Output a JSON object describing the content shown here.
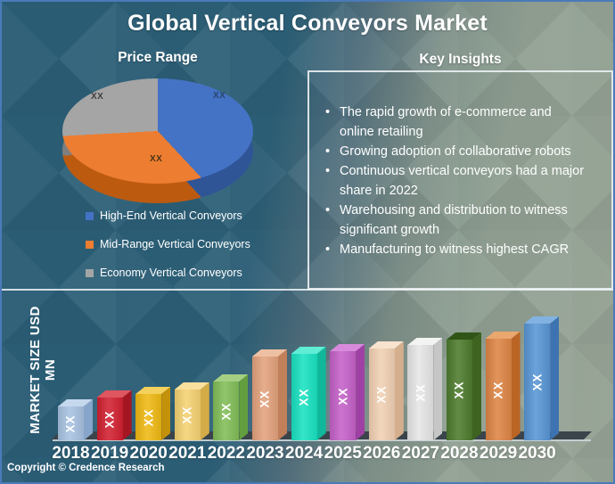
{
  "header": {
    "title": "Global Vertical Conveyors Market"
  },
  "sections": {
    "pie_title": "Price Range",
    "insights_title": "Key Insights"
  },
  "insights_bullets": [
    "The rapid growth of e-commerce and online retailing",
    "Growing adoption of collaborative robots",
    "Continuous vertical conveyors had a major share in 2022",
    "Warehousing and distribution to witness significant growth",
    "Manufacturing to witness highest CAGR"
  ],
  "chart_data": [
    {
      "type": "pie",
      "title": "Price Range",
      "slices": [
        {
          "label": "High-End Vertical Conveyors",
          "value": "XX",
          "color": "#4472C4",
          "side_color": "#2F5597",
          "sweep_deg": 137
        },
        {
          "label": "Mid-Range Vertical Conveyors",
          "value": "XX",
          "color": "#ED7D31",
          "side_color": "#BC5A10",
          "sweep_deg": 130
        },
        {
          "label": "Economy Vertical Conveyors",
          "value": "XX",
          "color": "#A5A5A5",
          "side_color": "#7F7F7F",
          "sweep_deg": 93
        }
      ],
      "legend_position": "bottom-left",
      "note": "3D pie chart; slice values shown as XX placeholders"
    },
    {
      "type": "bar",
      "title": "",
      "xlabel": "",
      "ylabel": "MARKET SIZE USD MN",
      "categories": [
        "2018",
        "2019",
        "2020",
        "2021",
        "2022",
        "2023",
        "2024",
        "2025",
        "2026",
        "2027",
        "2028",
        "2029",
        "2030"
      ],
      "values": [
        "XX",
        "XX",
        "XX",
        "XX",
        "XX",
        "XX",
        "XX",
        "XX",
        "XX",
        "XX",
        "XX",
        "XX",
        "XX"
      ],
      "relative_heights": [
        38,
        48,
        52,
        57,
        66,
        94,
        97,
        100,
        103,
        107,
        113,
        114,
        131
      ],
      "bar_colors": [
        {
          "front": "#A7C2E1",
          "top": "#C6D8ED",
          "side": "#87A5CB"
        },
        {
          "front": "#D22030",
          "top": "#DF5560",
          "side": "#A31622"
        },
        {
          "front": "#EFB913",
          "top": "#F4D05C",
          "side": "#C3920A"
        },
        {
          "front": "#F5D272",
          "top": "#F9E09C",
          "side": "#D3AC48"
        },
        {
          "front": "#82BD58",
          "top": "#A5D083",
          "side": "#639E3E"
        },
        {
          "front": "#E3A27D",
          "top": "#EEC0A3",
          "side": "#C2805A"
        },
        {
          "front": "#19E2C1",
          "top": "#5FEDD6",
          "side": "#10B89B"
        },
        {
          "front": "#C561C9",
          "top": "#D78ADB",
          "side": "#9F41A4"
        },
        {
          "front": "#F1D1B3",
          "top": "#F7E3CE",
          "side": "#D4AF8D"
        },
        {
          "front": "#E6E6E6",
          "top": "#F3F3F3",
          "side": "#C6C6C6"
        },
        {
          "front": "#4D7B2D",
          "top": "#315417",
          "side": "#3E6320"
        },
        {
          "front": "#DE8545",
          "top": "#EAA76F",
          "side": "#BA6526"
        },
        {
          "front": "#5896D5",
          "top": "#82B2E2",
          "side": "#3D73B0"
        }
      ],
      "grid": false,
      "note": "3D column chart; values shown as XX placeholders"
    }
  ],
  "footer": {
    "copyright": "Copyright © Credence Research"
  },
  "theme": {
    "bg_teal": "#2B5E76",
    "bg_sage": "#95A294",
    "text": "#FFFFFF",
    "border_blue": "#4A7AB8",
    "box_border": "#E8EEF0",
    "floor": "#3A444A"
  }
}
